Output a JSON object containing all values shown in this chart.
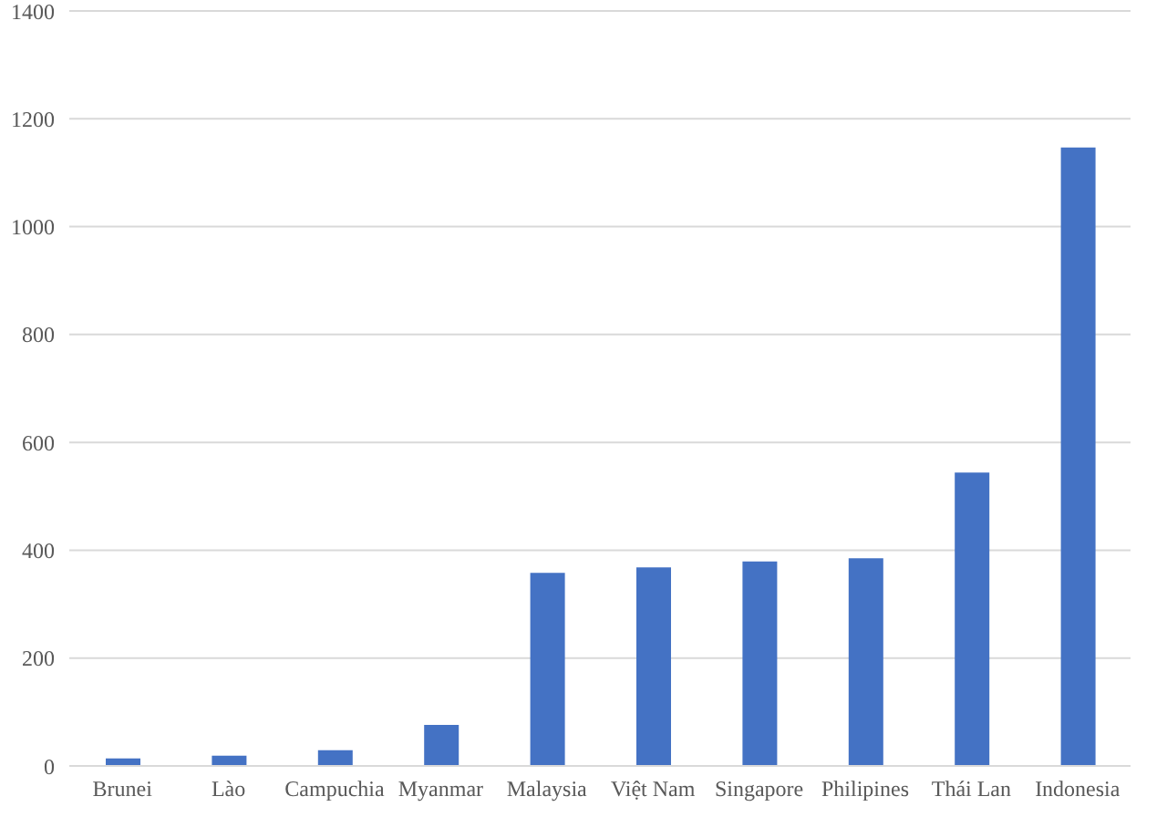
{
  "chart_data": {
    "type": "bar",
    "categories": [
      "Brunei",
      "Lào",
      "Campuchia",
      "Myanmar",
      "Malaysia",
      "Việt Nam",
      "Singapore",
      "Philipines",
      "Thái Lan",
      "Indonesia"
    ],
    "values": [
      14,
      19,
      29,
      76,
      358,
      368,
      379,
      385,
      544,
      1147
    ],
    "color": "#4472c4",
    "ylim": [
      0,
      1400
    ],
    "yticks": [
      0,
      200,
      400,
      600,
      800,
      1000,
      1200,
      1400
    ],
    "grid": "y",
    "legend": false
  }
}
